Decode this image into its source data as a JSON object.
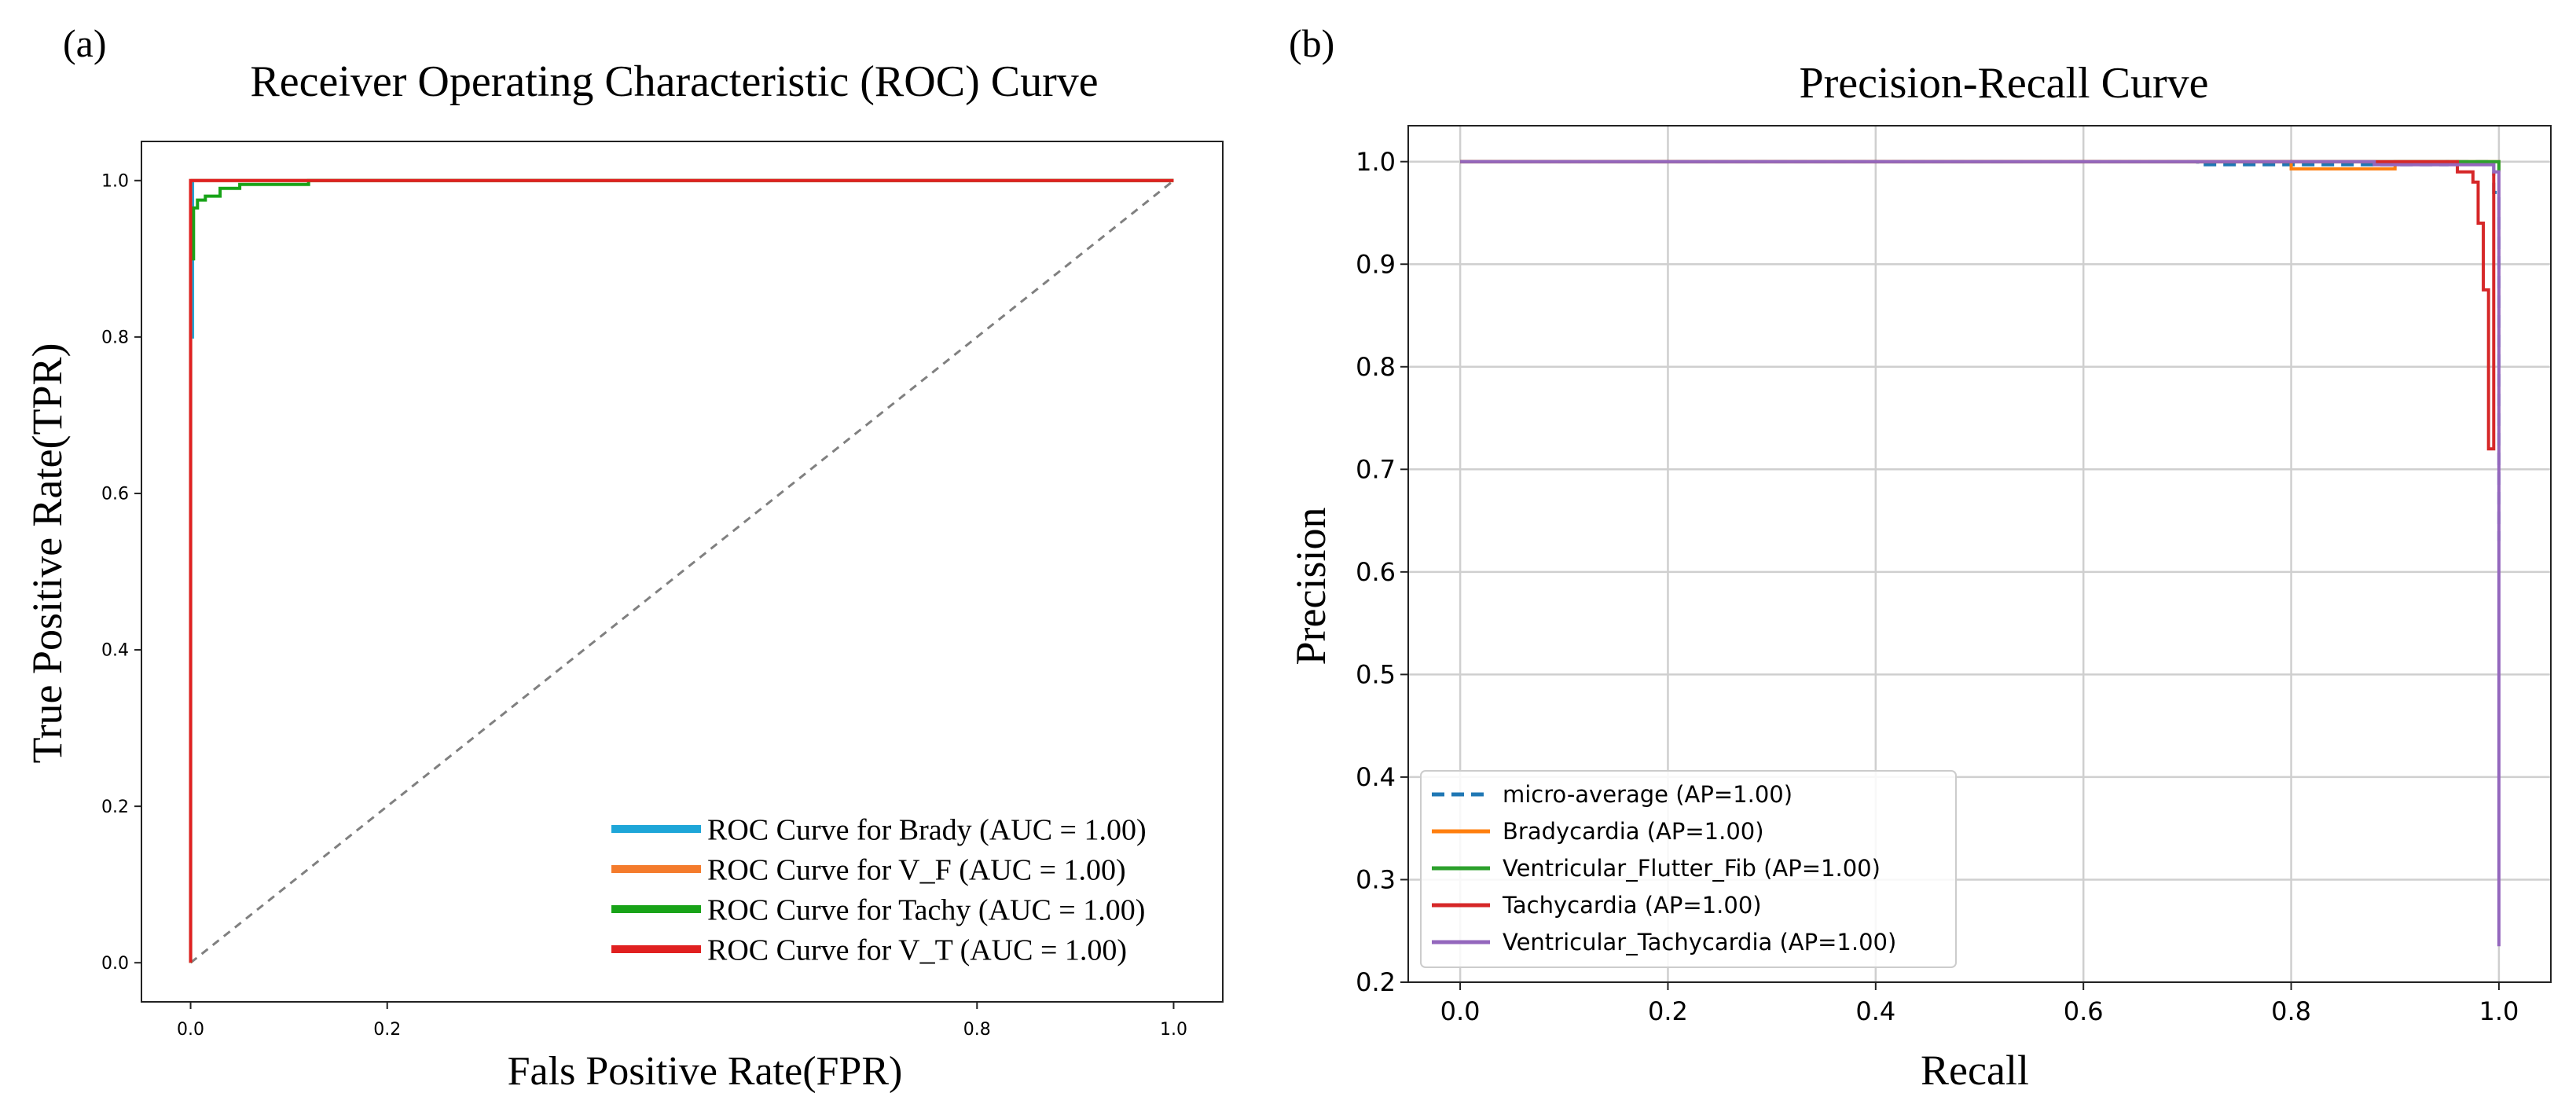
{
  "chart_data": [
    {
      "panel_label": "(a)",
      "type": "line",
      "title": "Receiver Operating Characteristic (ROC) Curve",
      "xlabel": "Fals Positive Rate(FPR)",
      "ylabel": "True Positive Rate(TPR)",
      "xlim": [
        -0.05,
        1.05
      ],
      "ylim": [
        -0.05,
        1.05
      ],
      "xticks": [
        0.0,
        0.2,
        0.8,
        1.0
      ],
      "xtick_labels": [
        "0.0",
        "0.2",
        "0.8",
        "1.0"
      ],
      "yticks": [
        0.0,
        0.2,
        0.4,
        0.6,
        0.8,
        1.0
      ],
      "ytick_labels": [
        "0.0",
        "0.2",
        "0.4",
        "0.6",
        "0.8",
        "1.0"
      ],
      "grid": false,
      "legend_position": "bottom-right",
      "diagonal": {
        "x": [
          0.0,
          1.0
        ],
        "y": [
          0.0,
          1.0
        ],
        "color": "#808080",
        "dashed": true
      },
      "series": [
        {
          "name": "ROC Curve for Brady (AUC = 1.00)",
          "color": "#1ea6d8",
          "x": [
            0.0,
            0.0,
            0.002,
            0.002,
            1.0
          ],
          "y": [
            0.0,
            0.8,
            0.8,
            1.0,
            1.0
          ]
        },
        {
          "name": "ROC Curve for V_F (AUC = 1.00)",
          "color": "#f47b2c",
          "x": [
            0.0,
            0.0,
            1.0
          ],
          "y": [
            0.0,
            1.0,
            1.0
          ]
        },
        {
          "name": "ROC Curve for Tachy (AUC = 1.00)",
          "color": "#18a318",
          "x": [
            0.0,
            0.0,
            0.003,
            0.003,
            0.007,
            0.007,
            0.015,
            0.015,
            0.03,
            0.03,
            0.05,
            0.05,
            0.12,
            0.12,
            1.0
          ],
          "y": [
            0.0,
            0.9,
            0.9,
            0.965,
            0.965,
            0.975,
            0.975,
            0.98,
            0.98,
            0.99,
            0.99,
            0.995,
            0.995,
            1.0,
            1.0
          ]
        },
        {
          "name": "ROC Curve for V_T (AUC = 1.00)",
          "color": "#e02020",
          "x": [
            0.0,
            0.0,
            1.0
          ],
          "y": [
            0.0,
            1.0,
            1.0
          ]
        }
      ]
    },
    {
      "panel_label": "(b)",
      "type": "line",
      "title": "Precision-Recall Curve",
      "xlabel": "Recall",
      "ylabel": "Precision",
      "xlim": [
        -0.05,
        1.05
      ],
      "ylim": [
        0.2,
        1.035
      ],
      "xticks": [
        0.0,
        0.2,
        0.4,
        0.6,
        0.8,
        1.0
      ],
      "xtick_labels": [
        "0.0",
        "0.2",
        "0.4",
        "0.6",
        "0.8",
        "1.0"
      ],
      "yticks": [
        0.2,
        0.3,
        0.4,
        0.5,
        0.6,
        0.7,
        0.8,
        0.9,
        1.0
      ],
      "ytick_labels": [
        "0.2",
        "0.3",
        "0.4",
        "0.5",
        "0.6",
        "0.7",
        "0.8",
        "0.9",
        "1.0"
      ],
      "grid": true,
      "legend_position": "bottom-left",
      "series": [
        {
          "name": "micro-average (AP=1.00)",
          "color": "#1f77b4",
          "dashed": true,
          "x": [
            0.0,
            0.71,
            0.71,
            0.95,
            0.95,
            0.995,
            0.995,
            1.0,
            1.0
          ],
          "y": [
            1.0,
            1.0,
            0.997,
            0.997,
            1.0,
            1.0,
            0.97,
            0.97,
            0.63
          ]
        },
        {
          "name": "Bradycardia (AP=1.00)",
          "color": "#ff7f0e",
          "x": [
            0.0,
            0.8,
            0.8,
            0.9,
            0.9,
            1.0,
            1.0
          ],
          "y": [
            1.0,
            1.0,
            0.993,
            0.993,
            1.0,
            1.0,
            0.99
          ]
        },
        {
          "name": "Ventricular_Flutter_Fib (AP=1.00)",
          "color": "#2ca02c",
          "x": [
            0.0,
            1.0,
            1.0
          ],
          "y": [
            1.0,
            1.0,
            0.99
          ]
        },
        {
          "name": "Tachycardia (AP=1.00)",
          "color": "#d62728",
          "x": [
            0.0,
            0.96,
            0.96,
            0.975,
            0.975,
            0.98,
            0.98,
            0.985,
            0.985,
            0.99,
            0.99,
            0.995,
            0.995
          ],
          "y": [
            1.0,
            1.0,
            0.99,
            0.99,
            0.98,
            0.98,
            0.94,
            0.94,
            0.875,
            0.875,
            0.72,
            0.72,
            0.99
          ]
        },
        {
          "name": "Ventricular_Tachycardia (AP=1.00)",
          "color": "#9467bd",
          "x": [
            0.0,
            0.88,
            0.88,
            0.995,
            0.995,
            1.0,
            1.0
          ],
          "y": [
            1.0,
            1.0,
            0.997,
            0.997,
            0.99,
            0.99,
            0.235
          ]
        }
      ]
    }
  ]
}
